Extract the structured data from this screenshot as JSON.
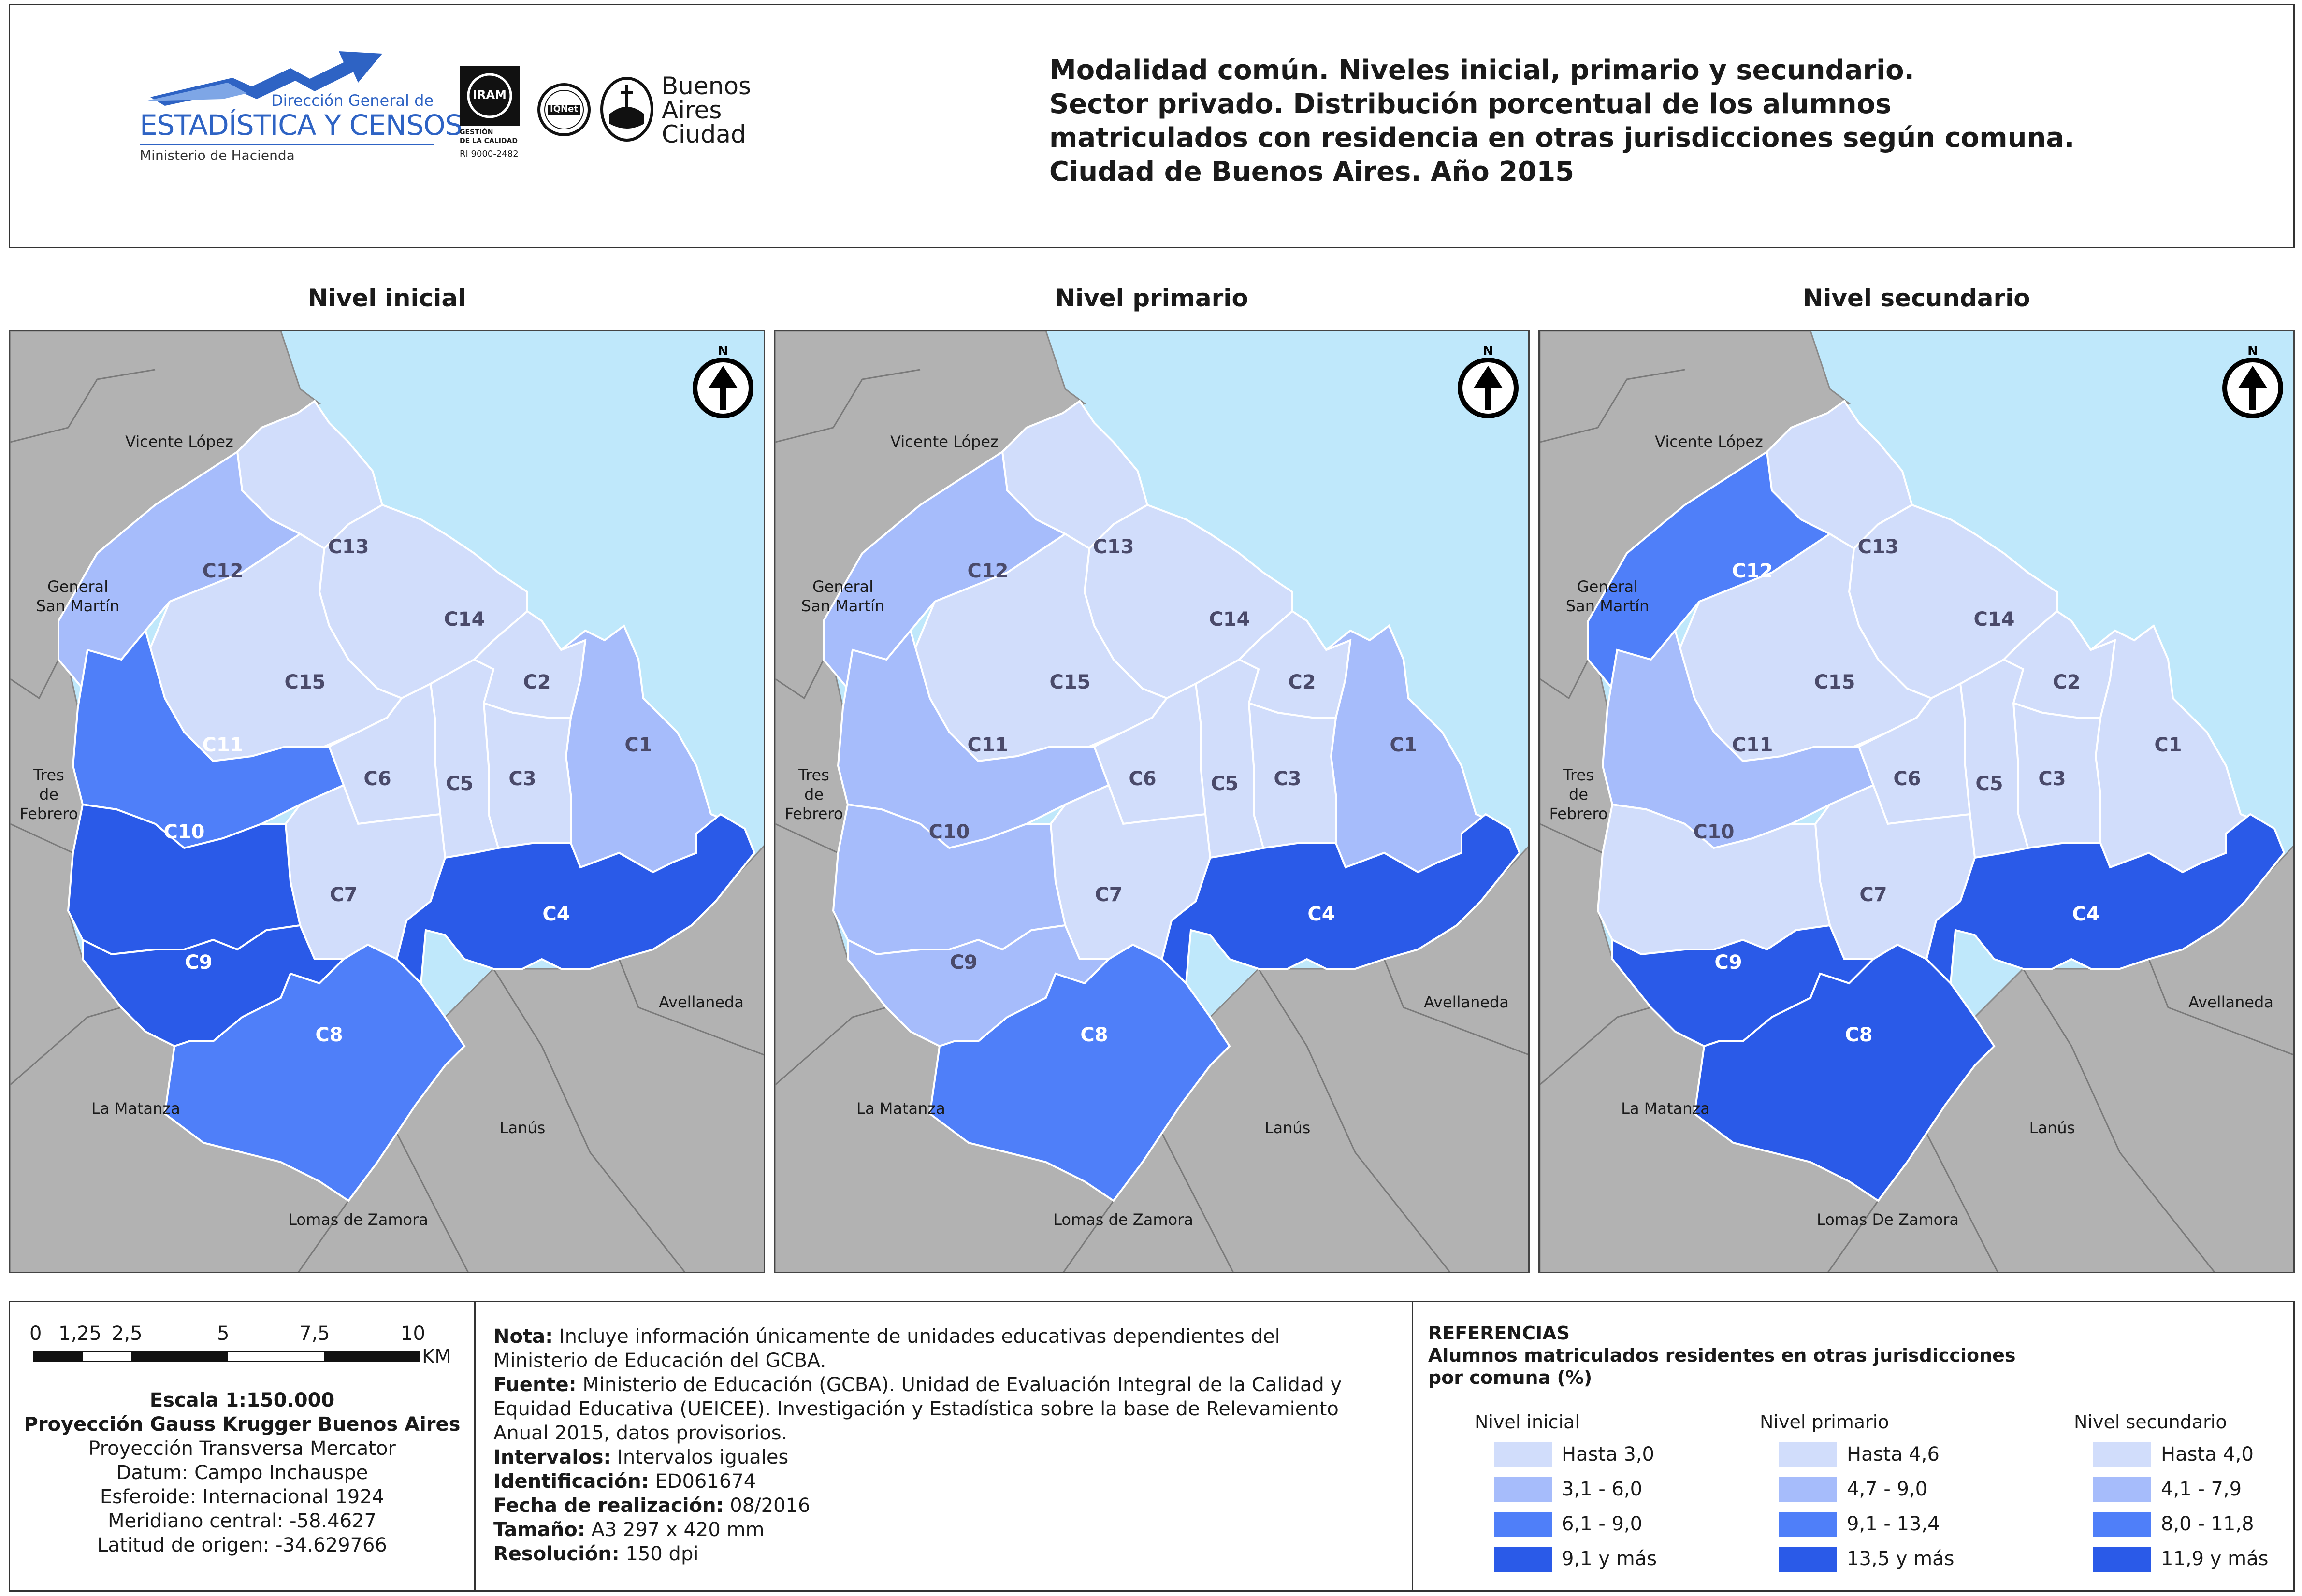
{
  "header": {
    "logo_dgec_line1": "Dirección General de",
    "logo_dgec_line2": "ESTADÍSTICA Y CENSOS",
    "logo_dgec_line3": "Ministerio de Hacienda",
    "logo_iram": "IRAM",
    "logo_iram_caption1": "GESTIÓN",
    "logo_iram_caption2": "DE LA CALIDAD",
    "logo_iram_caption3": "RI 9000-2482",
    "logo_iqnet": "IQNet",
    "logo_ba_line1": "Buenos",
    "logo_ba_line2": "Aires",
    "logo_ba_line3": "Ciudad",
    "title_lines": [
      "Modalidad común. Niveles inicial, primario y secundario.",
      "Sector privado. Distribución porcentual de los alumnos",
      "matriculados con residencia en otras jurisdicciones según comuna.",
      "Ciudad de Buenos Aires. Año 2015"
    ]
  },
  "colors": {
    "water": "#bfe8fb",
    "outside": "#b2b2b2",
    "class1": "#d1ddfb",
    "class2": "#a6bcfb",
    "class3": "#4f7ff9",
    "class4": "#2a5ae8"
  },
  "maps": [
    {
      "title": "Nivel inicial",
      "north": "N",
      "neighbors": [
        "Vicente López",
        "General",
        "San Martín",
        "Tres",
        "de",
        "Febrero",
        "La Matanza",
        "Lomas de Zamora",
        "Lanús",
        "Avellaneda"
      ],
      "comunas": {
        "C1": 2,
        "C2": 1,
        "C3": 1,
        "C4": 4,
        "C5": 1,
        "C6": 1,
        "C7": 1,
        "C8": 3,
        "C9": 4,
        "C10": 4,
        "C11": 3,
        "C12": 2,
        "C13": 1,
        "C14": 1,
        "C15": 1
      }
    },
    {
      "title": "Nivel primario",
      "north": "N",
      "neighbors": [
        "Vicente López",
        "General",
        "San Martín",
        "Tres",
        "de",
        "Febrero",
        "La Matanza",
        "Lomas de Zamora",
        "Lanús",
        "Avellaneda"
      ],
      "comunas": {
        "C1": 2,
        "C2": 1,
        "C3": 1,
        "C4": 4,
        "C5": 1,
        "C6": 1,
        "C7": 1,
        "C8": 3,
        "C9": 2,
        "C10": 2,
        "C11": 2,
        "C12": 2,
        "C13": 1,
        "C14": 1,
        "C15": 1
      }
    },
    {
      "title": "Nivel secundario",
      "north": "N",
      "neighbors": [
        "Vicente López",
        "General",
        "San Martín",
        "Tres",
        "de",
        "Febrero",
        "La Matanza",
        "Lomas De Zamora",
        "Lanús",
        "Avellaneda"
      ],
      "comunas": {
        "C1": 1,
        "C2": 1,
        "C3": 1,
        "C4": 4,
        "C5": 1,
        "C6": 1,
        "C7": 1,
        "C8": 4,
        "C9": 4,
        "C10": 1,
        "C11": 2,
        "C12": 3,
        "C13": 1,
        "C14": 1,
        "C15": 1
      }
    }
  ],
  "scale": {
    "ticks": [
      "0",
      "1,25",
      "2,5",
      "5",
      "7,5",
      "10"
    ],
    "unit": "KM",
    "lines": [
      "Escala 1:150.000",
      "Proyección Gauss Krugger Buenos Aires",
      "Proyección Transversa Mercator",
      "Datum: Campo Inchauspe",
      "Esferoide: Internacional 1924",
      "Meridiano central: -58.4627",
      "Latitud de origen: -34.629766"
    ]
  },
  "notes": [
    {
      "label": "Nota:",
      "lines": [
        " Incluye información únicamente de unidades educativas dependientes del",
        "Ministerio de Educación del GCBA."
      ]
    },
    {
      "label": "Fuente:",
      "lines": [
        " Ministerio de Educación (GCBA). Unidad de Evaluación Integral de la Calidad y",
        "Equidad Educativa (UEICEE). Investigación y Estadística sobre la base de Relevamiento",
        "Anual 2015, datos provisorios."
      ]
    },
    {
      "label": "Intervalos:",
      "lines": [
        " Intervalos iguales"
      ]
    },
    {
      "label": "Identificación:",
      "lines": [
        " ED061674"
      ]
    },
    {
      "label": "Fecha de realización:",
      "lines": [
        " 08/2016"
      ]
    },
    {
      "label": "Tamaño:",
      "lines": [
        " A3 297 x 420 mm"
      ]
    },
    {
      "label": "Resolución:",
      "lines": [
        " 150 dpi"
      ]
    }
  ],
  "legend": {
    "title": "REFERENCIAS",
    "subtitle_line1": "Alumnos matriculados residentes en otras jurisdicciones",
    "subtitle_line2": "por comuna (%)",
    "columns": [
      {
        "title": "Nivel inicial",
        "items": [
          "Hasta 3,0",
          "3,1 - 6,0",
          "6,1 - 9,0",
          "9,1 y más"
        ]
      },
      {
        "title": "Nivel primario",
        "items": [
          "Hasta 4,6",
          "4,7 - 9,0",
          "9,1 - 13,4",
          "13,5 y más"
        ]
      },
      {
        "title": "Nivel secundario",
        "items": [
          "Hasta 4,0",
          "4,1 - 7,9",
          "8,0 - 11,8",
          "11,9 y más"
        ]
      }
    ]
  }
}
